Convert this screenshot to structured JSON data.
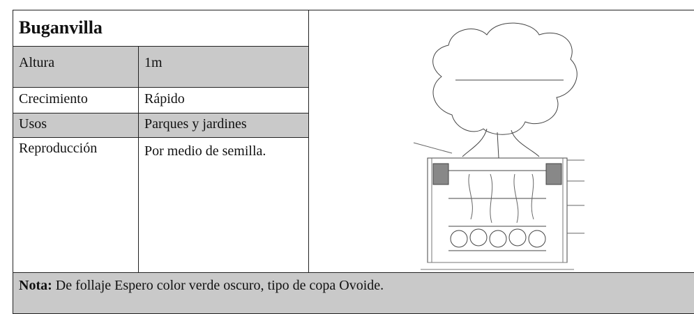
{
  "header": {
    "title": "Buganvilla"
  },
  "table": {
    "rows": [
      [
        "Altura",
        "1m"
      ],
      [
        "Crecimiento",
        "Rápido"
      ],
      [
        "Usos",
        "Parques y jardines"
      ],
      [
        "Reproducción",
        "Por medio de semilla."
      ]
    ]
  },
  "note": {
    "label": "Nota:",
    "text": " De follaje Espero color verde oscuro, tipo de copa Ovoide."
  }
}
